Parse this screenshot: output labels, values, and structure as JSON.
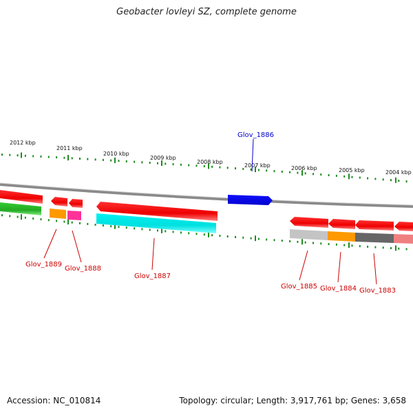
{
  "title": "Geobacter lovleyi SZ, complete genome",
  "footer": {
    "accession": "Accession: NC_010814",
    "info": "Topology: circular; Length: 3,917,761 bp; Genes: 3,658"
  },
  "colors": {
    "backbone": "#8a8a8a",
    "tick": "#1f8a1f",
    "label_red": "#cc0000",
    "label_blue": "#0000cc"
  },
  "kbp_labels": [
    "2012 kbp",
    "2011 kbp",
    "2010 kbp",
    "2009 kbp",
    "2008 kbp",
    "2007 kbp",
    "2006 kbp",
    "2005 kbp",
    "2004 kbp"
  ],
  "gene_labels": {
    "g1886": "Glov_1886",
    "g1889": "Glov_1889",
    "g1888": "Glov_1888",
    "g1887": "Glov_1887",
    "g1885": "Glov_1885",
    "g1884": "Glov_1884",
    "g1883": "Glov_1883"
  }
}
